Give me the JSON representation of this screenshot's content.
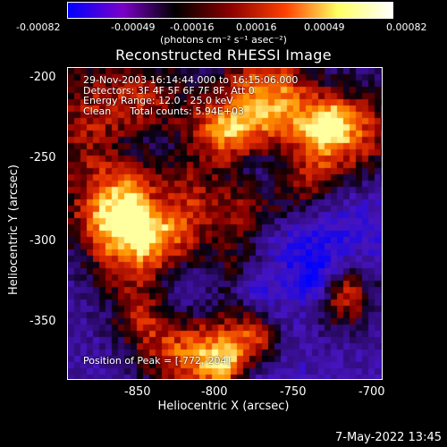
{
  "colorbar": {
    "ticks": [
      "-0.00082",
      "-0.00049",
      "-0.00016",
      "0.00016",
      "0.00049",
      "0.00082"
    ],
    "units": "(photons cm⁻² s⁻¹ asec⁻²)",
    "colors": [
      "#0000ff",
      "#7a00c8",
      "#000000",
      "#8a0000",
      "#ff4000",
      "#ffff60",
      "#ffffff"
    ]
  },
  "title": "Reconstructed RHESSI Image",
  "info_lines": [
    "29-Nov-2003 16:14:44.000 to 16:15:06.000",
    "Detectors: 3F 4F 5F 6F 7F 8F, Att 0",
    "Energy Range: 12.0 - 25.0 keV",
    "Clean      Total counts: 5.94E+03"
  ],
  "peak_text": "Position of Peak = [-772,-204]",
  "axes": {
    "xlabel": "Heliocentric X (arcsec)",
    "ylabel": "Heliocentric Y (arcsec)",
    "xticks": [
      "-850",
      "-800",
      "-750",
      "-700"
    ],
    "yticks": [
      "-200",
      "-250",
      "-300",
      "-350"
    ]
  },
  "timestamp": "7-May-2022 13:45"
}
